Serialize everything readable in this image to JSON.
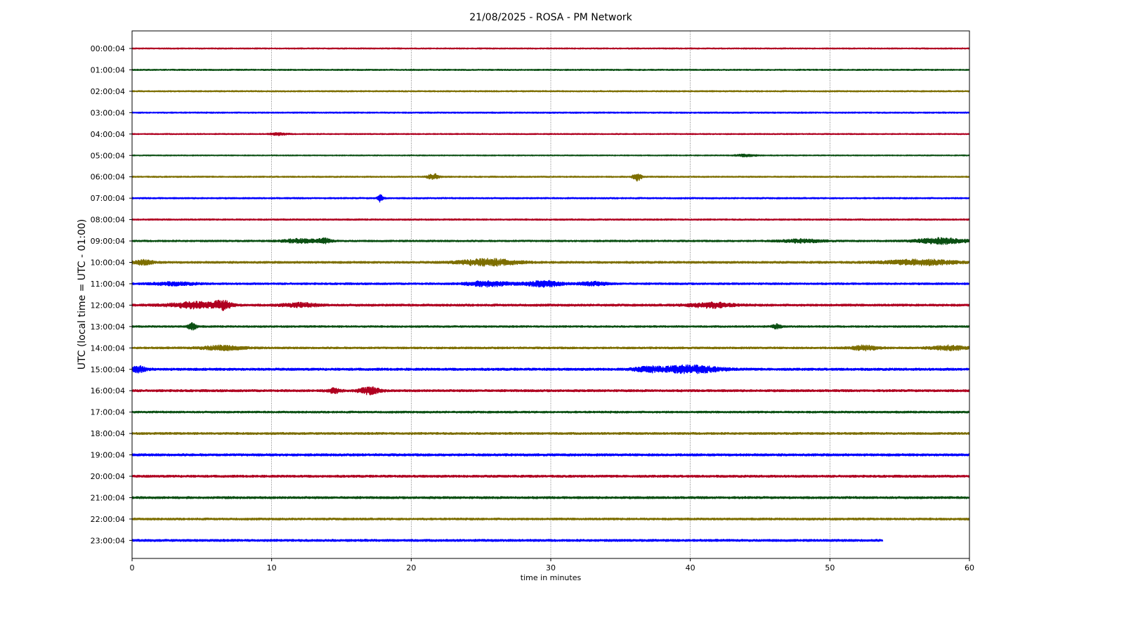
{
  "chart_data": {
    "type": "line",
    "title": "21/08/2025 - ROSA - PM Network",
    "xlabel": "time in minutes",
    "ylabel": "UTC (local time = UTC - 01:00)",
    "xlim": [
      0,
      60
    ],
    "xticks": [
      0,
      10,
      20,
      30,
      40,
      50,
      60
    ],
    "xgrid": true,
    "colors": [
      "#b00020",
      "#0a4f12",
      "#7d6e00",
      "#0000ff"
    ],
    "rows": [
      {
        "label": "00:00:04",
        "end": 60,
        "noise": 0.8,
        "events": []
      },
      {
        "label": "01:00:04",
        "end": 60,
        "noise": 0.9,
        "events": []
      },
      {
        "label": "02:00:04",
        "end": 60,
        "noise": 0.9,
        "events": []
      },
      {
        "label": "03:00:04",
        "end": 60,
        "noise": 0.9,
        "events": []
      },
      {
        "label": "04:00:04",
        "end": 60,
        "noise": 0.8,
        "events": [
          {
            "t": 10.5,
            "amp": 1.5,
            "dur": 1.2
          }
        ]
      },
      {
        "label": "05:00:04",
        "end": 60,
        "noise": 0.7,
        "events": [
          {
            "t": 44.0,
            "amp": 1.5,
            "dur": 1.5
          }
        ]
      },
      {
        "label": "06:00:04",
        "end": 60,
        "noise": 0.9,
        "events": [
          {
            "t": 21.6,
            "amp": 4,
            "dur": 0.8
          },
          {
            "t": 36.2,
            "amp": 6,
            "dur": 0.6
          }
        ]
      },
      {
        "label": "07:00:04",
        "end": 60,
        "noise": 1.0,
        "events": [
          {
            "t": 17.8,
            "amp": 5,
            "dur": 0.4
          }
        ]
      },
      {
        "label": "08:00:04",
        "end": 60,
        "noise": 1.0,
        "events": []
      },
      {
        "label": "09:00:04",
        "end": 60,
        "noise": 1.2,
        "events": [
          {
            "t": 12.0,
            "amp": 2.5,
            "dur": 2.5
          },
          {
            "t": 13.8,
            "amp": 3,
            "dur": 1
          },
          {
            "t": 48.0,
            "amp": 2,
            "dur": 3
          },
          {
            "t": 58.0,
            "amp": 4,
            "dur": 3.5
          }
        ]
      },
      {
        "label": "10:00:04",
        "end": 60,
        "noise": 1.4,
        "events": [
          {
            "t": 0.8,
            "amp": 3,
            "dur": 1.5
          },
          {
            "t": 25.5,
            "amp": 4.5,
            "dur": 4
          },
          {
            "t": 56.5,
            "amp": 3.5,
            "dur": 5
          }
        ]
      },
      {
        "label": "11:00:04",
        "end": 60,
        "noise": 1.3,
        "events": [
          {
            "t": 3.0,
            "amp": 2,
            "dur": 3
          },
          {
            "t": 25.5,
            "amp": 3.5,
            "dur": 3
          },
          {
            "t": 29.5,
            "amp": 4,
            "dur": 2.5
          },
          {
            "t": 33.0,
            "amp": 2.5,
            "dur": 2
          }
        ]
      },
      {
        "label": "12:00:04",
        "end": 60,
        "noise": 1.5,
        "events": [
          {
            "t": 4.5,
            "amp": 4,
            "dur": 3.5
          },
          {
            "t": 6.5,
            "amp": 5.5,
            "dur": 1.2
          },
          {
            "t": 12.0,
            "amp": 2.5,
            "dur": 2.5
          },
          {
            "t": 41.5,
            "amp": 3.5,
            "dur": 3
          }
        ]
      },
      {
        "label": "13:00:04",
        "end": 60,
        "noise": 1.2,
        "events": [
          {
            "t": 4.3,
            "amp": 5,
            "dur": 0.6
          },
          {
            "t": 46.2,
            "amp": 3,
            "dur": 0.6
          }
        ]
      },
      {
        "label": "14:00:04",
        "end": 60,
        "noise": 1.3,
        "events": [
          {
            "t": 6.5,
            "amp": 3,
            "dur": 3
          },
          {
            "t": 52.5,
            "amp": 3,
            "dur": 2
          },
          {
            "t": 58.5,
            "amp": 3,
            "dur": 2.5
          }
        ]
      },
      {
        "label": "15:00:04",
        "end": 60,
        "noise": 1.6,
        "events": [
          {
            "t": 0.5,
            "amp": 4,
            "dur": 1
          },
          {
            "t": 40.0,
            "amp": 5,
            "dur": 4
          },
          {
            "t": 37.0,
            "amp": 3,
            "dur": 2
          }
        ]
      },
      {
        "label": "16:00:04",
        "end": 60,
        "noise": 1.5,
        "events": [
          {
            "t": 14.5,
            "amp": 3,
            "dur": 1
          },
          {
            "t": 17.0,
            "amp": 4.5,
            "dur": 1.5
          }
        ]
      },
      {
        "label": "17:00:04",
        "end": 60,
        "noise": 1.3,
        "events": []
      },
      {
        "label": "18:00:04",
        "end": 60,
        "noise": 1.4,
        "events": []
      },
      {
        "label": "19:00:04",
        "end": 60,
        "noise": 1.6,
        "events": []
      },
      {
        "label": "20:00:04",
        "end": 60,
        "noise": 1.5,
        "events": []
      },
      {
        "label": "21:00:04",
        "end": 60,
        "noise": 1.5,
        "events": []
      },
      {
        "label": "22:00:04",
        "end": 60,
        "noise": 1.4,
        "events": []
      },
      {
        "label": "23:00:04",
        "end": 53.8,
        "noise": 1.5,
        "events": []
      }
    ]
  }
}
